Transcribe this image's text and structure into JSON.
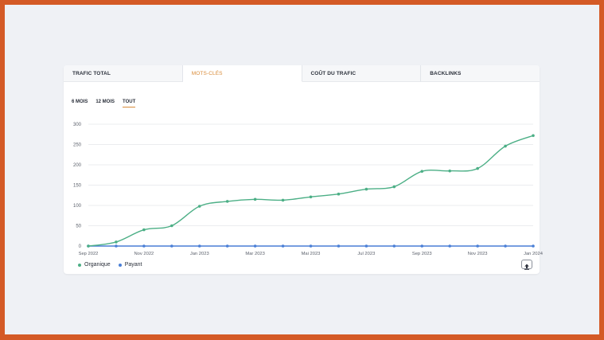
{
  "tabs": [
    {
      "label": "TRAFIC TOTAL",
      "active": false
    },
    {
      "label": "MOTS-CLÉS",
      "active": true
    },
    {
      "label": "COÛT DU TRAFIC",
      "active": false
    },
    {
      "label": "BACKLINKS",
      "active": false
    }
  ],
  "ranges": [
    {
      "label": "6 MOIS",
      "active": false
    },
    {
      "label": "12 MOIS",
      "active": false
    },
    {
      "label": "TOUT",
      "active": true
    }
  ],
  "colors": {
    "organique": "#4caf86",
    "payant": "#4a7fd6",
    "accent": "#d98c3a",
    "frame": "#d45a26"
  },
  "chart_data": {
    "type": "line",
    "x": [
      "2022-09",
      "2022-10",
      "2022-11",
      "2022-12",
      "2023-01",
      "2023-02",
      "2023-03",
      "2023-04",
      "2023-05",
      "2023-06",
      "2023-07",
      "2023-08",
      "2023-09",
      "2023-10",
      "2023-11",
      "2023-12",
      "2024-01"
    ],
    "x_tick_labels": [
      "Sep 2022",
      "Nov 2022",
      "Jan 2023",
      "Mar 2023",
      "Mai 2023",
      "Jul 2023",
      "Sep 2023",
      "Nov 2023",
      "Jan 2024"
    ],
    "y_ticks": [
      0,
      50,
      100,
      150,
      200,
      250,
      300
    ],
    "ylim": [
      0,
      300
    ],
    "grid": true,
    "legend_position": "bottom-left",
    "series": [
      {
        "name": "Organique",
        "color": "#4caf86",
        "values": [
          0,
          10,
          40,
          50,
          98,
          110,
          115,
          113,
          121,
          128,
          140,
          146,
          184,
          185,
          191,
          246,
          272
        ]
      },
      {
        "name": "Payant",
        "color": "#4a7fd6",
        "values": [
          0,
          0,
          0,
          0,
          0,
          0,
          0,
          0,
          0,
          0,
          0,
          0,
          0,
          0,
          0,
          0,
          0
        ]
      }
    ]
  },
  "legend": [
    {
      "label": "Organique",
      "color": "#4caf86"
    },
    {
      "label": "Payant",
      "color": "#4a7fd6"
    }
  ],
  "export_icon": "upload-icon"
}
